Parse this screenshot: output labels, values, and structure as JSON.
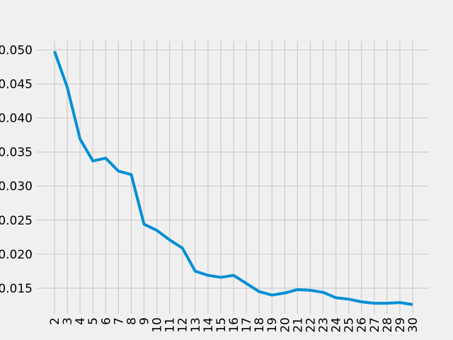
{
  "chart_data": {
    "type": "line",
    "title": "",
    "xlabel": "",
    "ylabel": "",
    "x": [
      2,
      3,
      4,
      5,
      6,
      7,
      8,
      9,
      10,
      11,
      12,
      13,
      14,
      15,
      16,
      17,
      18,
      19,
      20,
      21,
      22,
      23,
      24,
      25,
      26,
      27,
      28,
      29,
      30
    ],
    "series": [
      {
        "name": "",
        "values": [
          0.0498,
          0.0445,
          0.0369,
          0.0337,
          0.0341,
          0.0322,
          0.0317,
          0.0244,
          0.0235,
          0.0221,
          0.0209,
          0.0175,
          0.0169,
          0.0166,
          0.0169,
          0.0157,
          0.0145,
          0.014,
          0.0143,
          0.0148,
          0.0147,
          0.0144,
          0.0136,
          0.0134,
          0.013,
          0.0128,
          0.0128,
          0.0129,
          0.0126
        ]
      }
    ],
    "xticks": [
      "2",
      "3",
      "4",
      "5",
      "6",
      "7",
      "8",
      "9",
      "10",
      "11",
      "12",
      "13",
      "14",
      "15",
      "16",
      "17",
      "18",
      "19",
      "20",
      "21",
      "22",
      "23",
      "24",
      "25",
      "26",
      "27",
      "28",
      "29",
      "30"
    ],
    "yticks": [
      "0.015",
      "0.020",
      "0.025",
      "0.030",
      "0.035",
      "0.040",
      "0.045",
      "0.050"
    ],
    "ytick_values": [
      0.015,
      0.02,
      0.025,
      0.03,
      0.035,
      0.04,
      0.045,
      0.05
    ],
    "xlim": [
      2,
      30
    ],
    "ylim": [
      0.0126,
      0.0513
    ],
    "grid": true,
    "legend": "none",
    "colors": {
      "background": "#f0f0f0",
      "grid": "#cbcbcb",
      "line": "#008fd5",
      "text": "#000000"
    }
  }
}
